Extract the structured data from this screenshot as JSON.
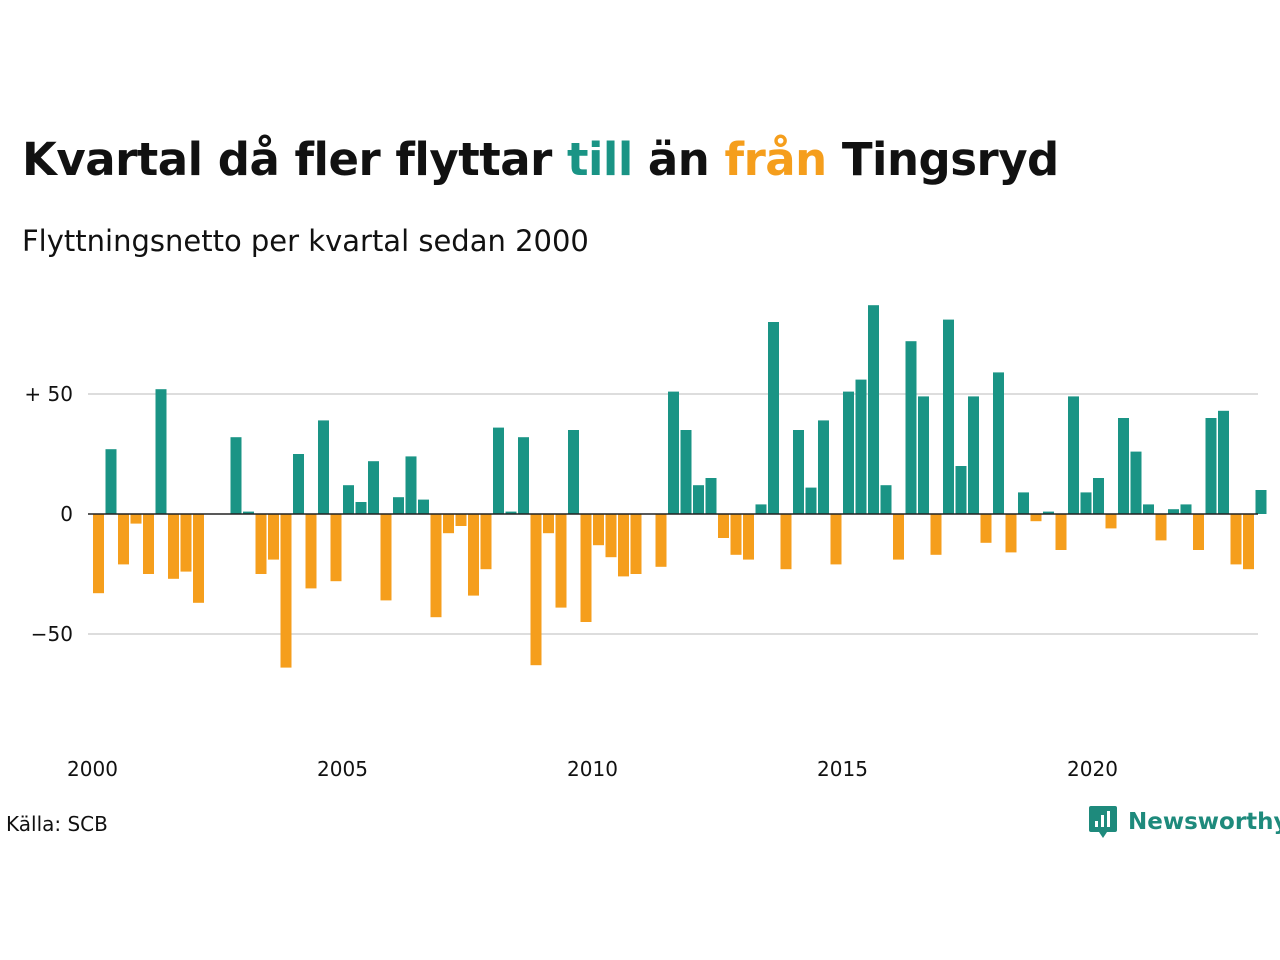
{
  "header": {
    "title_parts": {
      "a": "Kvartal då fler flyttar ",
      "b": "till",
      "c": " än ",
      "d": "från",
      "e": " Tingsryd"
    },
    "subtitle": "Flyttningsnetto per kvartal sedan 2000"
  },
  "footer": {
    "source": "Källa: SCB",
    "brand": "Newsworthy"
  },
  "colors": {
    "positive": "#1a9485",
    "negative": "#f59e1c",
    "brand": "#1e8a7c",
    "grid": "#dddddd"
  },
  "chart_data": {
    "type": "bar",
    "x_start": "2000 Q1",
    "values": [
      -33,
      27,
      -21,
      -4,
      -25,
      52,
      -27,
      -24,
      -37,
      0,
      0,
      32,
      1,
      -25,
      -19,
      -64,
      25,
      -31,
      39,
      -28,
      12,
      5,
      22,
      -36,
      7,
      24,
      6,
      -43,
      -8,
      -5,
      -34,
      -23,
      36,
      1,
      32,
      -63,
      -8,
      -39,
      35,
      -45,
      -13,
      -18,
      -26,
      -25,
      0,
      -22,
      51,
      35,
      12,
      15,
      -10,
      -17,
      -19,
      4,
      80,
      -23,
      35,
      11,
      39,
      -21,
      51,
      56,
      87,
      12,
      -19,
      72,
      49,
      -17,
      81,
      20,
      49,
      -12,
      59,
      -16,
      9,
      -3,
      1,
      -15,
      49,
      9,
      15,
      -6,
      40,
      26,
      4,
      -11,
      2,
      4,
      -15,
      40,
      43,
      -21,
      -23,
      10
    ],
    "x_ticks": [
      "2000",
      "2005",
      "2010",
      "2015",
      "2020"
    ],
    "y_ticks": [
      "+ 50",
      "0",
      "−50"
    ],
    "ylim": [
      -75,
      90
    ]
  }
}
